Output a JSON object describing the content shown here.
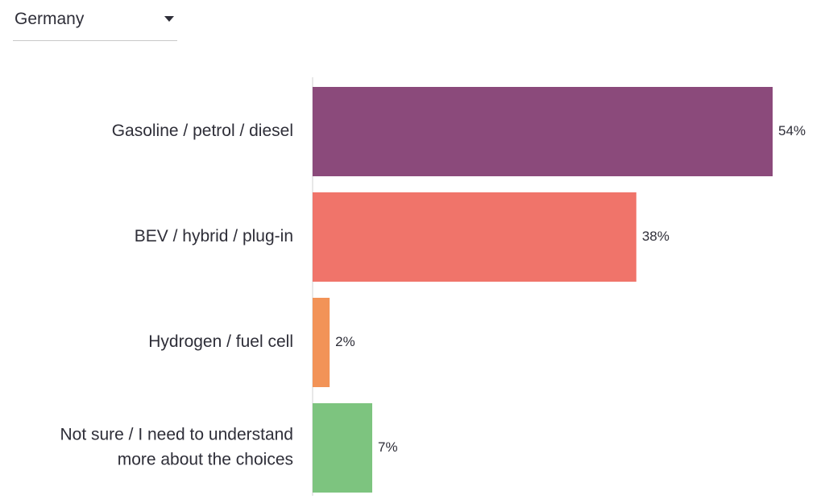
{
  "filter": {
    "selected": "Germany",
    "icon": "caret-down-icon"
  },
  "chart_data": {
    "type": "bar",
    "orientation": "horizontal",
    "categories": [
      "Gasoline / petrol / diesel",
      "BEV / hybrid / plug-in",
      "Hydrogen / fuel cell",
      "Not sure / I need to understand more about the choices"
    ],
    "category_lines": [
      [
        "Gasoline / petrol / diesel"
      ],
      [
        "BEV / hybrid / plug-in"
      ],
      [
        "Hydrogen / fuel cell"
      ],
      [
        "Not sure / I need to understand",
        "more about the choices"
      ]
    ],
    "values": [
      54,
      38,
      2,
      7
    ],
    "value_labels": [
      "54%",
      "38%",
      "2%",
      "7%"
    ],
    "colors": [
      "#8b4a7b",
      "#f0746a",
      "#f29357",
      "#7dc47f"
    ],
    "xlim": [
      0,
      54
    ],
    "unit": "%",
    "title": "",
    "xlabel": "",
    "ylabel": "",
    "grid": false,
    "legend": "none"
  }
}
